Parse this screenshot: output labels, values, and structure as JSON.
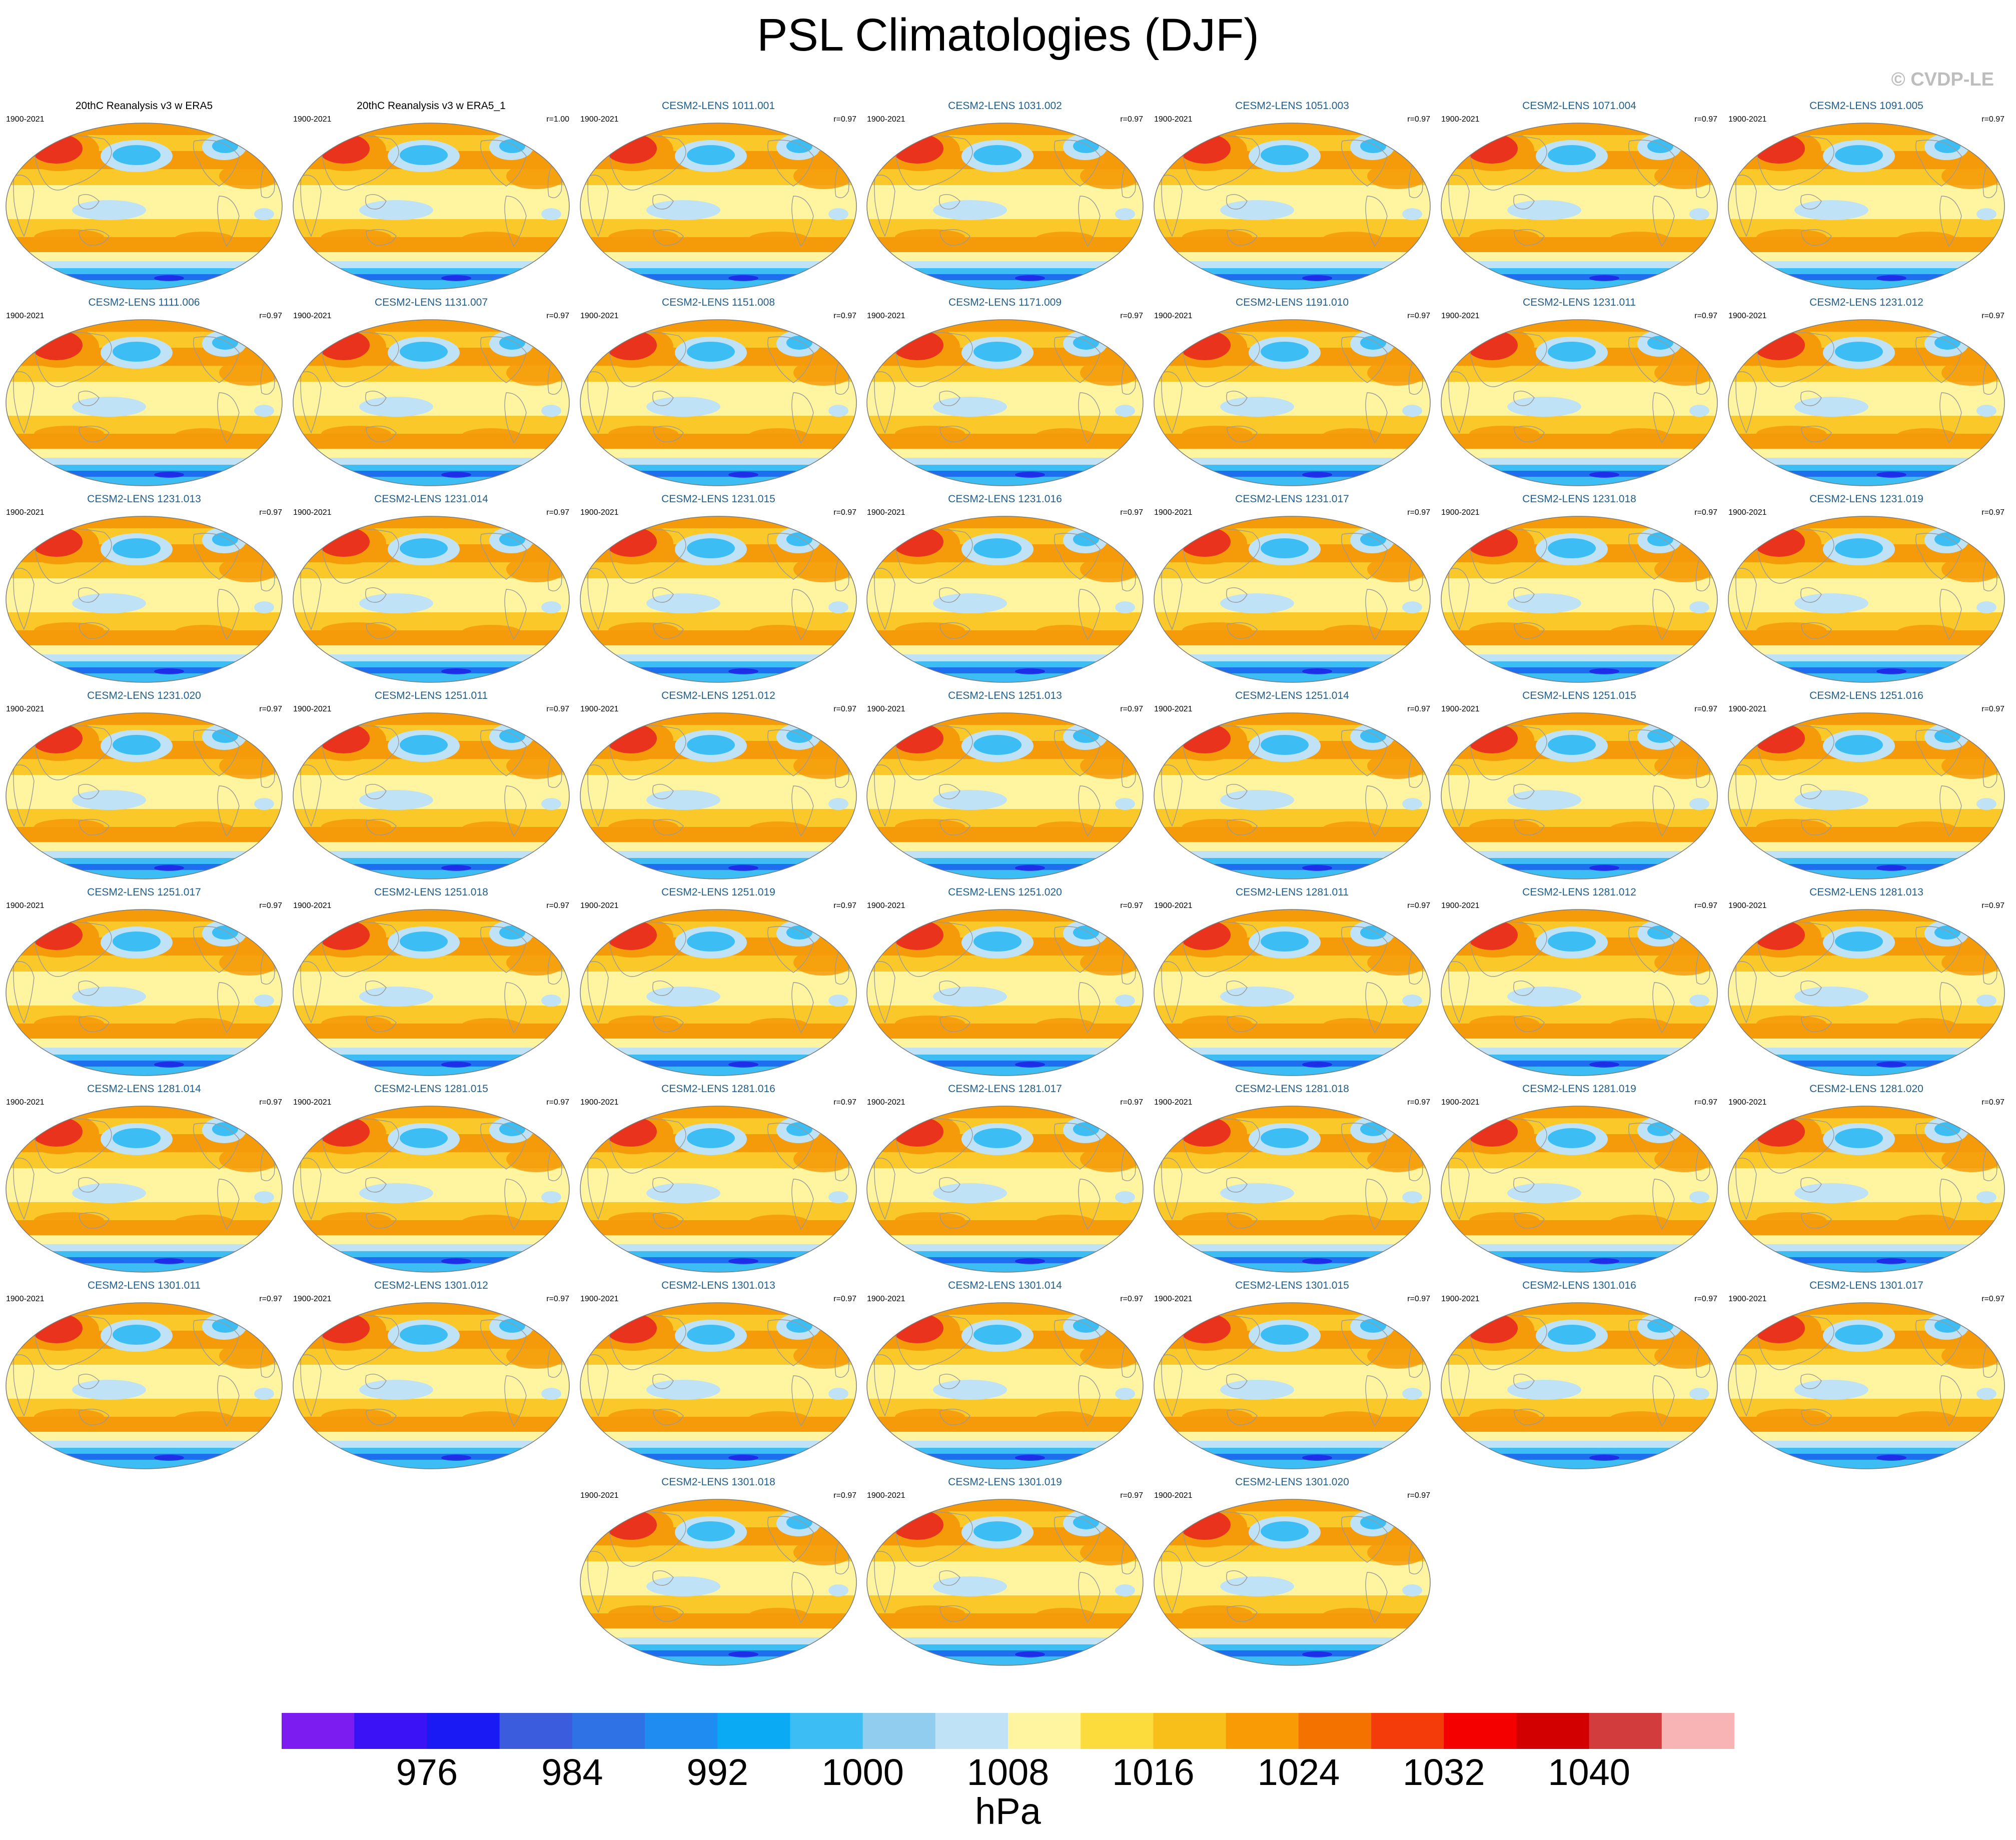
{
  "title": "PSL Climatologies (DJF)",
  "copyright": "© CVDP-LE",
  "panels": [
    {
      "title": "20thC Reanalysis v3 w ERA5",
      "period": "1900-2021",
      "corr": "",
      "kind": "obs"
    },
    {
      "title": "20thC Reanalysis v3 w ERA5_1",
      "period": "1900-2021",
      "corr": "r=1.00",
      "kind": "obs"
    },
    {
      "title": "CESM2-LENS 1011.001",
      "period": "1900-2021",
      "corr": "r=0.97",
      "kind": "model"
    },
    {
      "title": "CESM2-LENS 1031.002",
      "period": "1900-2021",
      "corr": "r=0.97",
      "kind": "model"
    },
    {
      "title": "CESM2-LENS 1051.003",
      "period": "1900-2021",
      "corr": "r=0.97",
      "kind": "model"
    },
    {
      "title": "CESM2-LENS 1071.004",
      "period": "1900-2021",
      "corr": "r=0.97",
      "kind": "model"
    },
    {
      "title": "CESM2-LENS 1091.005",
      "period": "1900-2021",
      "corr": "r=0.97",
      "kind": "model"
    },
    {
      "title": "CESM2-LENS 1111.006",
      "period": "1900-2021",
      "corr": "r=0.97",
      "kind": "model"
    },
    {
      "title": "CESM2-LENS 1131.007",
      "period": "1900-2021",
      "corr": "r=0.97",
      "kind": "model"
    },
    {
      "title": "CESM2-LENS 1151.008",
      "period": "1900-2021",
      "corr": "r=0.97",
      "kind": "model"
    },
    {
      "title": "CESM2-LENS 1171.009",
      "period": "1900-2021",
      "corr": "r=0.97",
      "kind": "model"
    },
    {
      "title": "CESM2-LENS 1191.010",
      "period": "1900-2021",
      "corr": "r=0.97",
      "kind": "model"
    },
    {
      "title": "CESM2-LENS 1231.011",
      "period": "1900-2021",
      "corr": "r=0.97",
      "kind": "model"
    },
    {
      "title": "CESM2-LENS 1231.012",
      "period": "1900-2021",
      "corr": "r=0.97",
      "kind": "model"
    },
    {
      "title": "CESM2-LENS 1231.013",
      "period": "1900-2021",
      "corr": "r=0.97",
      "kind": "model"
    },
    {
      "title": "CESM2-LENS 1231.014",
      "period": "1900-2021",
      "corr": "r=0.97",
      "kind": "model"
    },
    {
      "title": "CESM2-LENS 1231.015",
      "period": "1900-2021",
      "corr": "r=0.97",
      "kind": "model"
    },
    {
      "title": "CESM2-LENS 1231.016",
      "period": "1900-2021",
      "corr": "r=0.97",
      "kind": "model"
    },
    {
      "title": "CESM2-LENS 1231.017",
      "period": "1900-2021",
      "corr": "r=0.97",
      "kind": "model"
    },
    {
      "title": "CESM2-LENS 1231.018",
      "period": "1900-2021",
      "corr": "r=0.97",
      "kind": "model"
    },
    {
      "title": "CESM2-LENS 1231.019",
      "period": "1900-2021",
      "corr": "r=0.97",
      "kind": "model"
    },
    {
      "title": "CESM2-LENS 1231.020",
      "period": "1900-2021",
      "corr": "r=0.97",
      "kind": "model"
    },
    {
      "title": "CESM2-LENS 1251.011",
      "period": "1900-2021",
      "corr": "r=0.97",
      "kind": "model"
    },
    {
      "title": "CESM2-LENS 1251.012",
      "period": "1900-2021",
      "corr": "r=0.97",
      "kind": "model"
    },
    {
      "title": "CESM2-LENS 1251.013",
      "period": "1900-2021",
      "corr": "r=0.97",
      "kind": "model"
    },
    {
      "title": "CESM2-LENS 1251.014",
      "period": "1900-2021",
      "corr": "r=0.97",
      "kind": "model"
    },
    {
      "title": "CESM2-LENS 1251.015",
      "period": "1900-2021",
      "corr": "r=0.97",
      "kind": "model"
    },
    {
      "title": "CESM2-LENS 1251.016",
      "period": "1900-2021",
      "corr": "r=0.97",
      "kind": "model"
    },
    {
      "title": "CESM2-LENS 1251.017",
      "period": "1900-2021",
      "corr": "r=0.97",
      "kind": "model"
    },
    {
      "title": "CESM2-LENS 1251.018",
      "period": "1900-2021",
      "corr": "r=0.97",
      "kind": "model"
    },
    {
      "title": "CESM2-LENS 1251.019",
      "period": "1900-2021",
      "corr": "r=0.97",
      "kind": "model"
    },
    {
      "title": "CESM2-LENS 1251.020",
      "period": "1900-2021",
      "corr": "r=0.97",
      "kind": "model"
    },
    {
      "title": "CESM2-LENS 1281.011",
      "period": "1900-2021",
      "corr": "r=0.97",
      "kind": "model"
    },
    {
      "title": "CESM2-LENS 1281.012",
      "period": "1900-2021",
      "corr": "r=0.97",
      "kind": "model"
    },
    {
      "title": "CESM2-LENS 1281.013",
      "period": "1900-2021",
      "corr": "r=0.97",
      "kind": "model"
    },
    {
      "title": "CESM2-LENS 1281.014",
      "period": "1900-2021",
      "corr": "r=0.97",
      "kind": "model"
    },
    {
      "title": "CESM2-LENS 1281.015",
      "period": "1900-2021",
      "corr": "r=0.97",
      "kind": "model"
    },
    {
      "title": "CESM2-LENS 1281.016",
      "period": "1900-2021",
      "corr": "r=0.97",
      "kind": "model"
    },
    {
      "title": "CESM2-LENS 1281.017",
      "period": "1900-2021",
      "corr": "r=0.97",
      "kind": "model"
    },
    {
      "title": "CESM2-LENS 1281.018",
      "period": "1900-2021",
      "corr": "r=0.97",
      "kind": "model"
    },
    {
      "title": "CESM2-LENS 1281.019",
      "period": "1900-2021",
      "corr": "r=0.97",
      "kind": "model"
    },
    {
      "title": "CESM2-LENS 1281.020",
      "period": "1900-2021",
      "corr": "r=0.97",
      "kind": "model"
    },
    {
      "title": "CESM2-LENS 1301.011",
      "period": "1900-2021",
      "corr": "r=0.97",
      "kind": "model"
    },
    {
      "title": "CESM2-LENS 1301.012",
      "period": "1900-2021",
      "corr": "r=0.97",
      "kind": "model"
    },
    {
      "title": "CESM2-LENS 1301.013",
      "period": "1900-2021",
      "corr": "r=0.97",
      "kind": "model"
    },
    {
      "title": "CESM2-LENS 1301.014",
      "period": "1900-2021",
      "corr": "r=0.97",
      "kind": "model"
    },
    {
      "title": "CESM2-LENS 1301.015",
      "period": "1900-2021",
      "corr": "r=0.97",
      "kind": "model"
    },
    {
      "title": "CESM2-LENS 1301.016",
      "period": "1900-2021",
      "corr": "r=0.97",
      "kind": "model"
    },
    {
      "title": "CESM2-LENS 1301.017",
      "period": "1900-2021",
      "corr": "r=0.97",
      "kind": "model"
    },
    {
      "title": "CESM2-LENS 1301.018",
      "period": "1900-2021",
      "corr": "r=0.97",
      "kind": "model"
    },
    {
      "title": "CESM2-LENS 1301.019",
      "period": "1900-2021",
      "corr": "r=0.97",
      "kind": "model"
    },
    {
      "title": "CESM2-LENS 1301.020",
      "period": "1900-2021",
      "corr": "r=0.97",
      "kind": "model"
    }
  ],
  "colorbar": {
    "units": "hPa",
    "colors": [
      "#7d1cf0",
      "#3b12f5",
      "#1a1af5",
      "#3b5cdc",
      "#2e72e6",
      "#1e8cf0",
      "#0aaaf5",
      "#3cbef5",
      "#90cdee",
      "#bfe2f6",
      "#fff5a0",
      "#fcdc3c",
      "#f8be19",
      "#f89b05",
      "#f47200",
      "#f43c0a",
      "#f40000",
      "#d20000",
      "#d23c3c",
      "#f8b4b4"
    ],
    "labels": [
      "976",
      "984",
      "992",
      "1000",
      "1008",
      "1016",
      "1024",
      "1032",
      "1040"
    ]
  },
  "palette": {
    "red": "#e8281e",
    "orange": "#f59b0a",
    "gold": "#fac828",
    "yellow": "#fff5a0",
    "lightblue": "#bfe2f6",
    "blue": "#3cbef5",
    "darkblue": "#1e6ef0",
    "deep": "#1e1ee6",
    "land": "#9a9a9a"
  }
}
